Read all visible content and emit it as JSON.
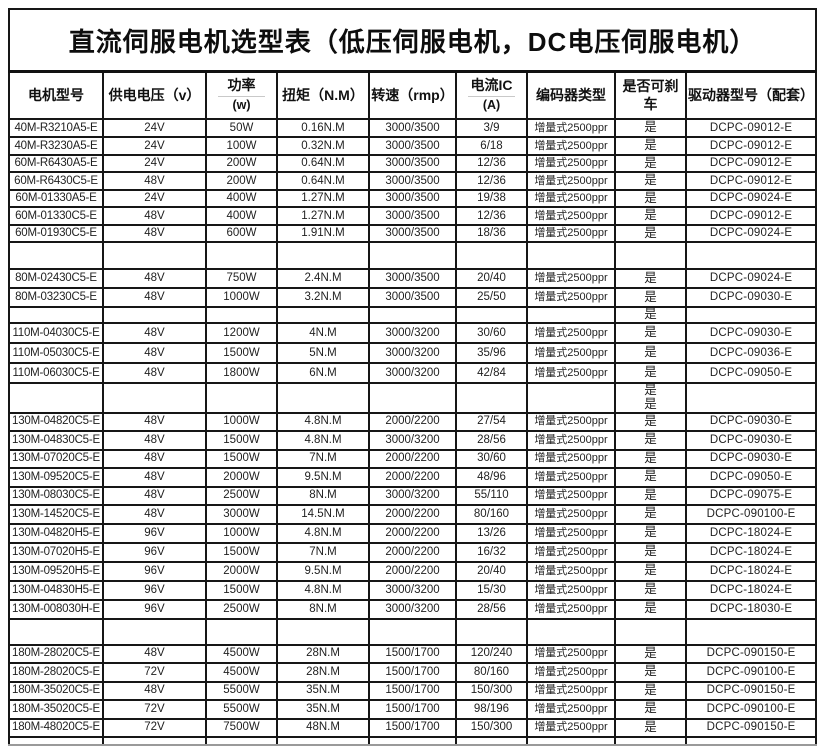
{
  "title": "直流伺服电机选型表（低压伺服电机，DC电压伺服电机）",
  "table": {
    "columns": [
      {
        "key": "model",
        "label": "电机型号"
      },
      {
        "key": "voltage",
        "label": "供电电压（v）"
      },
      {
        "key": "power",
        "label": "功率",
        "sub": "(w)"
      },
      {
        "key": "torque",
        "label": "扭矩（N.M）"
      },
      {
        "key": "speed",
        "label": "转速（rmp）"
      },
      {
        "key": "current",
        "label": "电流IC",
        "sub": "(A)"
      },
      {
        "key": "encoder",
        "label": "编码器类型"
      },
      {
        "key": "brake",
        "label": "是否可刹车"
      },
      {
        "key": "driver",
        "label": "驱动器型号（配套）"
      }
    ],
    "rows": [
      [
        "40M-R3210A5-E",
        "24V",
        "50W",
        "0.16N.M",
        "3000/3500",
        "3/9",
        "增量式2500ppr",
        "是",
        "DCPC-09012-E"
      ],
      [
        "40M-R3230A5-E",
        "24V",
        "100W",
        "0.32N.M",
        "3000/3500",
        "6/18",
        "增量式2500ppr",
        "是",
        "DCPC-09012-E"
      ],
      [
        "60M-R6430A5-E",
        "24V",
        "200W",
        "0.64N.M",
        "3000/3500",
        "12/36",
        "增量式2500ppr",
        "是",
        "DCPC-09012-E"
      ],
      [
        "60M-R6430C5-E",
        "48V",
        "200W",
        "0.64N.M",
        "3000/3500",
        "12/36",
        "增量式2500ppr",
        "是",
        "DCPC-09012-E"
      ],
      [
        "60M-01330A5-E",
        "24V",
        "400W",
        "1.27N.M",
        "3000/3500",
        "19/38",
        "增量式2500ppr",
        "是",
        "DCPC-09024-E"
      ],
      [
        "60M-01330C5-E",
        "48V",
        "400W",
        "1.27N.M",
        "3000/3500",
        "12/36",
        "增量式2500ppr",
        "是",
        "DCPC-09012-E"
      ],
      [
        "60M-01930C5-E",
        "48V",
        "600W",
        "1.91N.M",
        "3000/3500",
        "18/36",
        "增量式2500ppr",
        "是",
        "DCPC-09024-E"
      ],
      [
        "",
        "",
        "",
        "",
        "",
        "",
        "",
        "",
        ""
      ],
      [
        "80M-02430C5-E",
        "48V",
        "750W",
        "2.4N.M",
        "3000/3500",
        "20/40",
        "增量式2500ppr",
        "是",
        "DCPC-09024-E"
      ],
      [
        "80M-03230C5-E",
        "48V",
        "1000W",
        "3.2N.M",
        "3000/3500",
        "25/50",
        "增量式2500ppr",
        "是",
        "DCPC-09030-E"
      ],
      [
        "",
        "",
        "",
        "",
        "",
        "",
        "",
        "是",
        ""
      ],
      [
        "110M-04030C5-E",
        "48V",
        "1200W",
        "4N.M",
        "3000/3200",
        "30/60",
        "增量式2500ppr",
        "是",
        "DCPC-09030-E"
      ],
      [
        "110M-05030C5-E",
        "48V",
        "1500W",
        "5N.M",
        "3000/3200",
        "35/96",
        "增量式2500ppr",
        "是",
        "DCPC-09036-E"
      ],
      [
        "110M-06030C5-E",
        "48V",
        "1800W",
        "6N.M",
        "3000/3200",
        "42/84",
        "增量式2500ppr",
        "是",
        "DCPC-09050-E"
      ],
      [
        "",
        "",
        "",
        "",
        "",
        "",
        "",
        "是\n是",
        ""
      ],
      [
        "130M-04820C5-E",
        "48V",
        "1000W",
        "4.8N.M",
        "2000/2200",
        "27/54",
        "增量式2500ppr",
        "是",
        "DCPC-09030-E"
      ],
      [
        "130M-04830C5-E",
        "48V",
        "1500W",
        "4.8N.M",
        "3000/3200",
        "28/56",
        "增量式2500ppr",
        "是",
        "DCPC-09030-E"
      ],
      [
        "130M-07020C5-E",
        "48V",
        "1500W",
        "7N.M",
        "2000/2200",
        "30/60",
        "增量式2500ppr",
        "是",
        "DCPC-09030-E"
      ],
      [
        "130M-09520C5-E",
        "48V",
        "2000W",
        "9.5N.M",
        "2000/2200",
        "48/96",
        "增量式2500ppr",
        "是",
        "DCPC-09050-E"
      ],
      [
        "130M-08030C5-E",
        "48V",
        "2500W",
        "8N.M",
        "3000/3200",
        "55/110",
        "增量式2500ppr",
        "是",
        "DCPC-09075-E"
      ],
      [
        "130M-14520C5-E",
        "48V",
        "3000W",
        "14.5N.M",
        "2000/2200",
        "80/160",
        "增量式2500ppr",
        "是",
        "DCPC-090100-E"
      ],
      [
        "130M-04820H5-E",
        "96V",
        "1000W",
        "4.8N.M",
        "2000/2200",
        "13/26",
        "增量式2500ppr",
        "是",
        "DCPC-18024-E"
      ],
      [
        "130M-07020H5-E",
        "96V",
        "1500W",
        "7N.M",
        "2000/2200",
        "16/32",
        "增量式2500ppr",
        "是",
        "DCPC-18024-E"
      ],
      [
        "130M-09520H5-E",
        "96V",
        "2000W",
        "9.5N.M",
        "2000/2200",
        "20/40",
        "增量式2500ppr",
        "是",
        "DCPC-18024-E"
      ],
      [
        "130M-04830H5-E",
        "96V",
        "1500W",
        "4.8N.M",
        "3000/3200",
        "15/30",
        "增量式2500ppr",
        "是",
        "DCPC-18024-E"
      ],
      [
        "130M-008030H-E",
        "96V",
        "2500W",
        "8N.M",
        "3000/3200",
        "28/56",
        "增量式2500ppr",
        "是",
        "DCPC-18030-E"
      ],
      [
        "",
        "",
        "",
        "",
        "",
        "",
        "",
        "",
        ""
      ],
      [
        "180M-28020C5-E",
        "48V",
        "4500W",
        "28N.M",
        "1500/1700",
        "120/240",
        "增量式2500ppr",
        "是",
        "DCPC-090150-E"
      ],
      [
        "180M-28020C5-E",
        "72V",
        "4500W",
        "28N.M",
        "1500/1700",
        "80/160",
        "增量式2500ppr",
        "是",
        "DCPC-090100-E"
      ],
      [
        "180M-35020C5-E",
        "48V",
        "5500W",
        "35N.M",
        "1500/1700",
        "150/300",
        "增量式2500ppr",
        "是",
        "DCPC-090150-E"
      ],
      [
        "180M-35020C5-E",
        "72V",
        "5500W",
        "35N.M",
        "1500/1700",
        "98/196",
        "增量式2500ppr",
        "是",
        "DCPC-090100-E"
      ],
      [
        "180M-48020C5-E",
        "72V",
        "7500W",
        "48N.M",
        "1500/1700",
        "150/300",
        "增量式2500ppr",
        "是",
        "DCPC-090150-E"
      ],
      [
        "",
        "",
        "",
        "",
        "",
        "",
        "",
        "",
        ""
      ]
    ]
  }
}
